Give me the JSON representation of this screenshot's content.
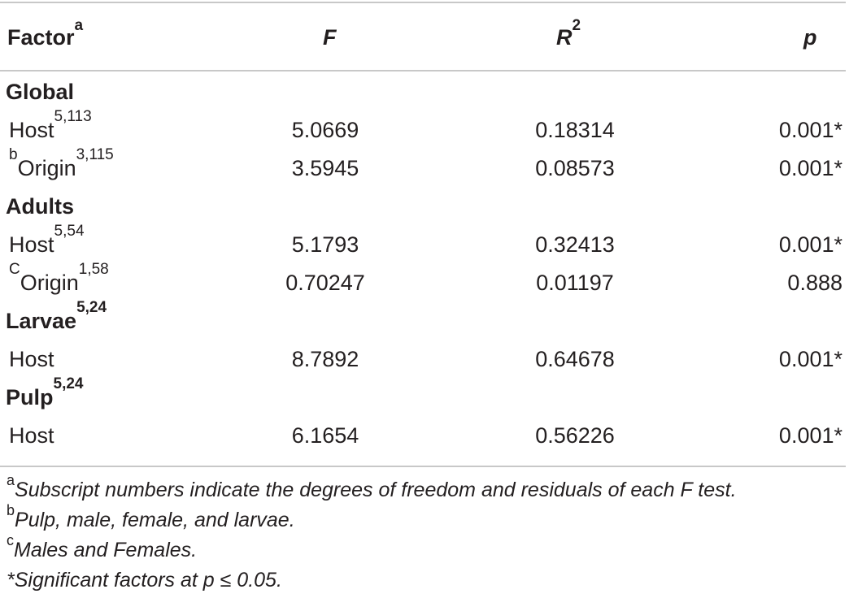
{
  "header": {
    "factor": "Factor",
    "factor_sup": "a",
    "f": "F",
    "r": "R",
    "r_sup": "2",
    "p": "p"
  },
  "rows": [
    {
      "kind": "group",
      "label": "Global",
      "sup": ""
    },
    {
      "kind": "data",
      "pre": "",
      "label": "Host",
      "sup": "5,113",
      "f": "5.0669",
      "r2": "0.18314",
      "p": "0.001*"
    },
    {
      "kind": "data",
      "pre": "b",
      "label": "Origin",
      "sup": "3,115",
      "f": "3.5945",
      "r2": "0.08573",
      "p": "0.001*"
    },
    {
      "kind": "group",
      "label": "Adults",
      "sup": ""
    },
    {
      "kind": "data",
      "pre": "",
      "label": "Host",
      "sup": "5,54",
      "f": "5.1793",
      "r2": "0.32413",
      "p": "0.001*"
    },
    {
      "kind": "data",
      "pre": "C",
      "label": "Origin",
      "sup": "1,58",
      "f": "0.70247",
      "r2": "0.01197",
      "p": "0.888"
    },
    {
      "kind": "group",
      "label": "Larvae",
      "sup": "5,24"
    },
    {
      "kind": "data",
      "pre": "",
      "label": "Host",
      "sup": "",
      "f": "8.7892",
      "r2": "0.64678",
      "p": "0.001*"
    },
    {
      "kind": "group",
      "label": "Pulp",
      "sup": "5,24"
    },
    {
      "kind": "data",
      "pre": "",
      "label": "Host",
      "sup": "",
      "f": "6.1654",
      "r2": "0.56226",
      "p": "0.001*"
    }
  ],
  "footnotes": [
    {
      "mark": "a",
      "text": "Subscript numbers indicate the degrees of freedom and residuals of each F test."
    },
    {
      "mark": "b",
      "text": "Pulp, male, female, and larvae."
    },
    {
      "mark": "c",
      "text": "Males and Females."
    },
    {
      "mark": "",
      "text": "*Significant factors at p ≤ 0.05."
    }
  ]
}
